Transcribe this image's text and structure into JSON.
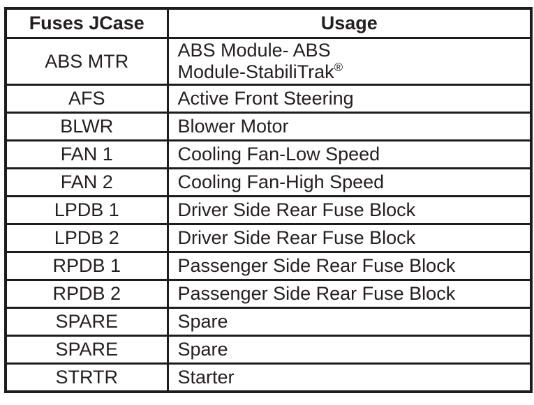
{
  "page": {
    "background_color": "#ffffff",
    "text_color": "#231f20",
    "border_color": "#1c1c1c"
  },
  "table": {
    "header": {
      "fuse_col": "Fuses JCase",
      "usage_col": "Usage"
    },
    "rows": [
      {
        "fuse": "ABS MTR",
        "usage_line1": "ABS Module- ABS",
        "usage_line2": "Module-StabiliTrak",
        "usage_sup": "®"
      },
      {
        "fuse": "AFS",
        "usage": "Active Front Steering"
      },
      {
        "fuse": "BLWR",
        "usage": "Blower Motor"
      },
      {
        "fuse": "FAN 1",
        "usage": "Cooling Fan-Low Speed"
      },
      {
        "fuse": "FAN 2",
        "usage": "Cooling Fan-High Speed"
      },
      {
        "fuse": "LPDB 1",
        "usage": "Driver Side Rear Fuse Block"
      },
      {
        "fuse": "LPDB 2",
        "usage": "Driver Side Rear Fuse Block"
      },
      {
        "fuse": "RPDB 1",
        "usage": "Passenger Side Rear Fuse Block"
      },
      {
        "fuse": "RPDB 2",
        "usage": "Passenger Side Rear Fuse Block"
      },
      {
        "fuse": "SPARE",
        "usage": "Spare"
      },
      {
        "fuse": "SPARE",
        "usage": "Spare"
      },
      {
        "fuse": "STRTR",
        "usage": "Starter"
      }
    ]
  }
}
